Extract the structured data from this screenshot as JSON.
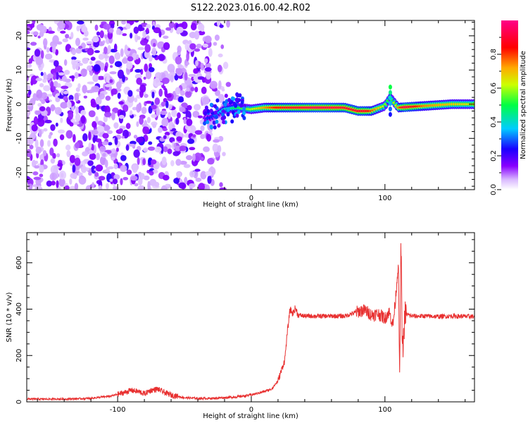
{
  "title": "S122.2023.016.00.42.R02",
  "chart_data": [
    {
      "type": "heatmap",
      "name": "spectrogram",
      "xlabel": "Height of straight line (km)",
      "ylabel": "Frequency (Hz)",
      "xlim": [
        -168,
        167
      ],
      "ylim": [
        -25,
        24.5
      ],
      "x_ticks": [
        -100,
        0,
        100
      ],
      "x_tick_labels": [
        "-100",
        "0",
        "100"
      ],
      "y_ticks": [
        -20,
        -10,
        0,
        10,
        20
      ],
      "y_tick_labels": [
        "-20",
        "-10",
        "0",
        "10",
        "20"
      ],
      "colorbar": {
        "label": "Normalized spectral amplitude",
        "range": [
          0,
          1
        ],
        "ticks": [
          0.0,
          0.2,
          0.4,
          0.6,
          0.8
        ],
        "tick_labels": [
          "0.0",
          "0.2",
          "0.4",
          "0.6",
          "0.8"
        ],
        "colormap": [
          "#e9d4ff",
          "#8800ff",
          "#1a00ff",
          "#00ccff",
          "#00ff44",
          "#ccff00",
          "#ffaa00",
          "#ff0000",
          "#ff0088"
        ]
      },
      "ridge": {
        "description_points": [
          [
            -30,
            -4
          ],
          [
            -20,
            -1.5
          ],
          [
            -10,
            -1
          ],
          [
            0,
            -1.5
          ],
          [
            10,
            -1
          ],
          [
            30,
            -1
          ],
          [
            50,
            -1
          ],
          [
            70,
            -1
          ],
          [
            80,
            -2
          ],
          [
            90,
            -2
          ],
          [
            100,
            -0.5
          ],
          [
            104,
            2
          ],
          [
            110,
            -1
          ],
          [
            130,
            -0.5
          ],
          [
            150,
            0
          ],
          [
            167,
            0
          ]
        ],
        "peak_amplitude": [
          [
            -30,
            0.25
          ],
          [
            -20,
            0.4
          ],
          [
            0,
            0.6
          ],
          [
            20,
            0.85
          ],
          [
            50,
            0.95
          ],
          [
            70,
            0.9
          ],
          [
            85,
            0.9
          ],
          [
            100,
            0.6
          ],
          [
            104,
            0.45
          ],
          [
            115,
            0.95
          ],
          [
            130,
            0.75
          ],
          [
            150,
            0.7
          ],
          [
            167,
            0.65
          ]
        ]
      },
      "noise_region": [
        -168,
        -25
      ]
    },
    {
      "type": "line",
      "name": "snr",
      "xlabel": "Height of straight line (km)",
      "ylabel": "SNR (10 * v/v)",
      "xlim": [
        -168,
        167
      ],
      "ylim": [
        0,
        730
      ],
      "x_ticks": [
        -100,
        0,
        100
      ],
      "x_tick_labels": [
        "-100",
        "0",
        "100"
      ],
      "y_ticks": [
        0,
        200,
        400,
        600
      ],
      "y_tick_labels": [
        "0",
        "200",
        "400",
        "600"
      ],
      "color": "#e83030",
      "series": [
        {
          "x": [
            -168,
            -140,
            -120,
            -105,
            -95,
            -90,
            -85,
            -80,
            -75,
            -70,
            -65,
            -60,
            -50,
            -40,
            -30,
            -20,
            -10,
            0,
            10,
            15,
            20,
            25,
            27,
            29,
            31,
            33,
            35,
            40,
            50,
            60,
            70,
            80,
            85,
            90,
            95,
            100,
            103,
            106,
            108,
            110,
            111,
            112,
            113,
            115,
            120,
            130,
            140,
            150,
            167
          ],
          "y": [
            12,
            12,
            15,
            25,
            40,
            50,
            45,
            35,
            50,
            55,
            40,
            30,
            18,
            15,
            15,
            18,
            22,
            30,
            45,
            55,
            90,
            180,
            300,
            400,
            380,
            405,
            375,
            370,
            370,
            370,
            370,
            390,
            395,
            375,
            380,
            360,
            390,
            330,
            450,
            600,
            100,
            720,
            200,
            380,
            370,
            370,
            368,
            370,
            368
          ]
        }
      ]
    }
  ]
}
